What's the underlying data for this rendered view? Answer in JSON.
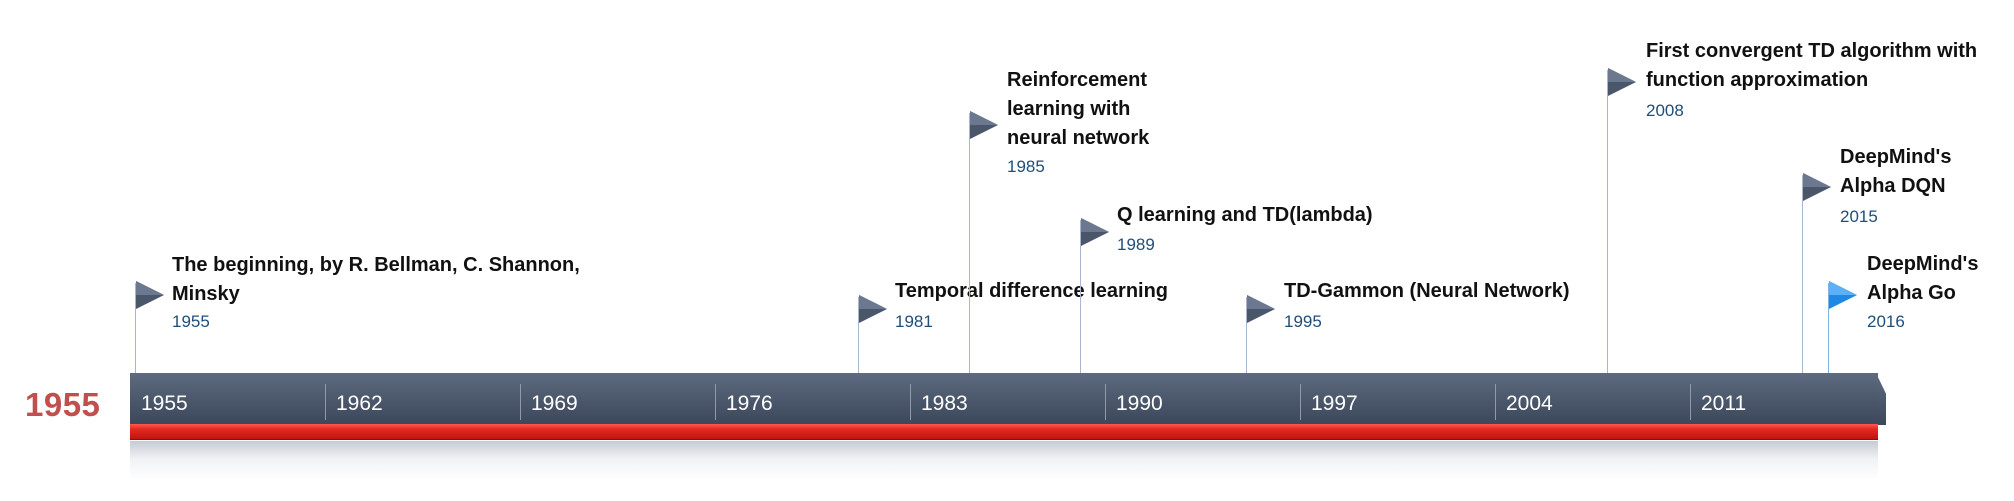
{
  "start_year": "1955",
  "axis": {
    "ticks": [
      "1955",
      "1962",
      "1969",
      "1976",
      "1983",
      "1990",
      "1997",
      "2004",
      "2011"
    ]
  },
  "events": [
    {
      "title": "The beginning, by R. Bellman, C. Shannon,\nMinsky",
      "year": "1955"
    },
    {
      "title": "Temporal difference learning",
      "year": "1981"
    },
    {
      "title": "Reinforcement\nlearning with\nneural network",
      "year": "1985"
    },
    {
      "title": "Q learning and TD(lambda)",
      "year": "1989"
    },
    {
      "title": "TD-Gammon (Neural Network)",
      "year": "1995"
    },
    {
      "title": "First convergent TD algorithm with\nfunction approximation",
      "year": "2008"
    },
    {
      "title": "DeepMind's\nAlpha DQN",
      "year": "2015"
    },
    {
      "title": "DeepMind's\nAlpha Go",
      "year": "2016",
      "highlight": true
    }
  ],
  "colors": {
    "start_year": "#c0504d",
    "flag": "#4a566a",
    "flag_highlight": "#1e88e5",
    "year_text": "#1f4e79",
    "red_band": "#e3281f"
  }
}
